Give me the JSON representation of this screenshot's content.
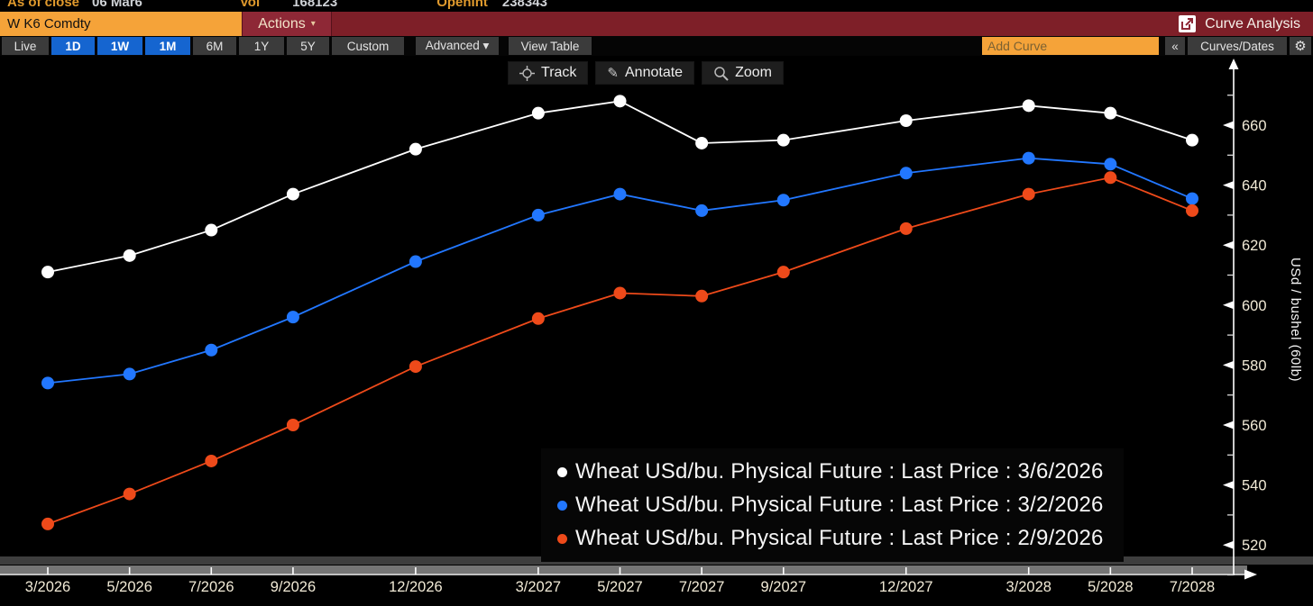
{
  "ticker_row": {
    "as_of_label": "As of close",
    "as_of_value": "06 Mar6",
    "vol_label": "Vol",
    "vol_value": "168123",
    "open_int_label": "OpenInt",
    "open_int_value": "238343"
  },
  "toolbar": {
    "security": "W K6 Comdty",
    "actions_label": "Actions",
    "dropdown_arrow": "▾",
    "app_title": "Curve Analysis"
  },
  "tab_bar": {
    "tabs": [
      {
        "label": "Live",
        "active": false
      },
      {
        "label": "1D",
        "active": true
      },
      {
        "label": "1W",
        "active": true
      },
      {
        "label": "1M",
        "active": true
      },
      {
        "label": "6M",
        "active": false
      },
      {
        "label": "1Y",
        "active": false
      },
      {
        "label": "5Y",
        "active": false
      },
      {
        "label": "Custom",
        "active": false
      },
      {
        "label": "Advanced ▾",
        "active": false
      },
      {
        "label": "View Table",
        "active": false
      }
    ],
    "add_curve_placeholder": "Add Curve",
    "collapse_label": "«",
    "curves_dates_label": "Curves/Dates",
    "gear_icon": "⚙"
  },
  "chart_toolbar": {
    "track_label": "Track",
    "annotate_label": "Annotate",
    "zoom_label": "Zoom",
    "pencil_glyph": "✎"
  },
  "colors": {
    "tab_active_bg": "#1565d0",
    "accent_orange": "#f5a339",
    "titlebar_red": "#7e1f28",
    "series_white": "#ffffff",
    "series_blue": "#2277ff",
    "series_orange": "#ee4a1a"
  },
  "chart_data": {
    "type": "line",
    "ylabel": "USd / bushel (60lb)",
    "x_categories": [
      "3/2026",
      "5/2026",
      "7/2026",
      "9/2026",
      "12/2026",
      "3/2027",
      "5/2027",
      "7/2027",
      "9/2027",
      "12/2027",
      "3/2028",
      "5/2028",
      "7/2028"
    ],
    "x_month_offsets": [
      0,
      2,
      4,
      6,
      9,
      12,
      14,
      16,
      18,
      21,
      24,
      26,
      28
    ],
    "y_ticks": [
      520,
      540,
      560,
      580,
      600,
      620,
      640,
      660
    ],
    "y_minor_step": 10,
    "ylim": [
      509,
      681
    ],
    "grid": false,
    "legend_position": "bottom-right",
    "series": [
      {
        "name": "Wheat USd/bu. Physical Future : Last Price : 3/6/2026",
        "color": "#ffffff",
        "values": [
          611,
          616.5,
          625,
          637,
          652,
          664,
          668,
          654,
          655,
          661.5,
          666.5,
          664,
          655
        ]
      },
      {
        "name": "Wheat USd/bu. Physical Future : Last Price : 3/2/2026",
        "color": "#2277ff",
        "values": [
          574,
          577,
          585,
          596,
          614.5,
          630,
          637,
          631.5,
          635,
          644,
          649,
          647,
          635.5
        ]
      },
      {
        "name": "Wheat USd/bu. Physical Future : Last Price : 2/9/2026",
        "color": "#ee4a1a",
        "values": [
          527,
          537,
          548,
          560,
          579.5,
          595.5,
          604,
          603,
          611,
          625.5,
          637,
          642.5,
          631.5
        ]
      }
    ]
  }
}
